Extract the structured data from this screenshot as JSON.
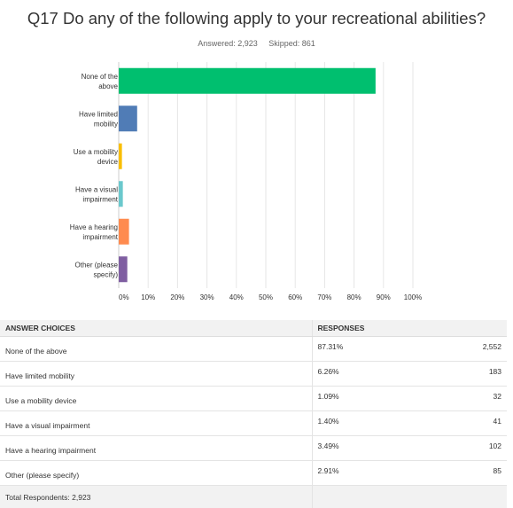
{
  "question": {
    "title": "Q17 Do any of the following apply to your recreational abilities?",
    "answered_label": "Answered: 2,923",
    "skipped_label": "Skipped: 861"
  },
  "chart_data": {
    "type": "bar",
    "orientation": "horizontal",
    "categories": [
      [
        "None of the",
        "above"
      ],
      [
        "Have limited",
        "mobility"
      ],
      [
        "Use a mobility",
        "device"
      ],
      [
        "Have a visual",
        "impairment"
      ],
      [
        "Have a hearing",
        "impairment"
      ],
      [
        "Other (please",
        "specify)"
      ]
    ],
    "values": [
      87.31,
      6.26,
      1.09,
      1.4,
      3.49,
      2.91
    ],
    "colors": [
      "#00bf6f",
      "#507cb6",
      "#f9be00",
      "#6bc8cd",
      "#ff8b4f",
      "#7f5ea1"
    ],
    "xlim": [
      0,
      100
    ],
    "xticks": [
      "0%",
      "10%",
      "20%",
      "30%",
      "40%",
      "50%",
      "60%",
      "70%",
      "80%",
      "90%",
      "100%"
    ],
    "grid": true
  },
  "table": {
    "headers": {
      "choice": "ANSWER CHOICES",
      "responses": "RESPONSES"
    },
    "rows": [
      {
        "choice": "None of the above",
        "percent": "87.31%",
        "count": "2,552"
      },
      {
        "choice": "Have limited mobility",
        "percent": "6.26%",
        "count": "183"
      },
      {
        "choice": "Use a mobility device",
        "percent": "1.09%",
        "count": "32"
      },
      {
        "choice": "Have a visual impairment",
        "percent": "1.40%",
        "count": "41"
      },
      {
        "choice": "Have a hearing impairment",
        "percent": "3.49%",
        "count": "102"
      },
      {
        "choice": "Other (please specify)",
        "percent": "2.91%",
        "count": "85"
      }
    ],
    "total": "Total Respondents: 2,923"
  }
}
